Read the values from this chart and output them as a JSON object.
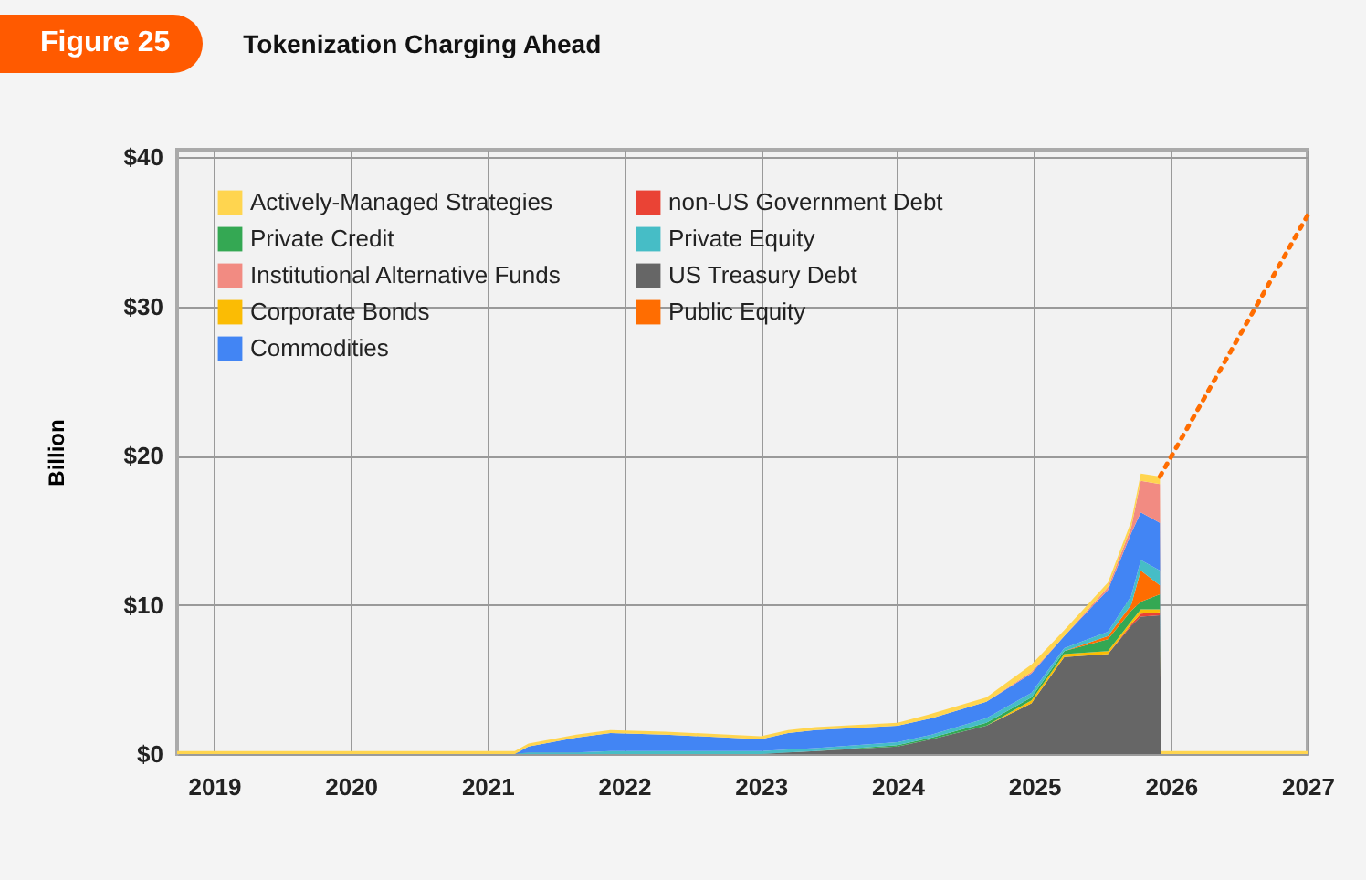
{
  "chart_data": {
    "type": "area",
    "stacked": true,
    "title": "Tokenization Charging Ahead",
    "annotations": [
      "Figure 25"
    ],
    "ylabel": "Billion",
    "x": [
      2018.73,
      2021.2,
      2021.3,
      2021.65,
      2021.9,
      2022.3,
      2023.0,
      2023.2,
      2023.4,
      2024.0,
      2024.25,
      2024.65,
      2024.98,
      2025.22,
      2025.54,
      2025.71,
      2025.78,
      2025.92,
      2025.93,
      2027
    ],
    "series": [
      {
        "name": "US Treasury Debt",
        "color": "#666666",
        "values": [
          0,
          0,
          0,
          0,
          0,
          0,
          0,
          0.1,
          0.2,
          0.5,
          1.0,
          1.9,
          3.4,
          6.5,
          6.7,
          8.6,
          9.2,
          9.3,
          0,
          0
        ]
      },
      {
        "name": "non-US Government Debt",
        "color": "#ea4335",
        "values": [
          0,
          0,
          0,
          0,
          0,
          0,
          0,
          0,
          0,
          0,
          0,
          0,
          0,
          0,
          0,
          0.1,
          0.2,
          0.2,
          0,
          0
        ]
      },
      {
        "name": "Corporate Bonds",
        "color": "#fbbc04",
        "values": [
          0,
          0,
          0,
          0,
          0,
          0,
          0,
          0,
          0,
          0,
          0,
          0,
          0.2,
          0.2,
          0.2,
          0.2,
          0.3,
          0.2,
          0,
          0
        ]
      },
      {
        "name": "Private Credit",
        "color": "#34a853",
        "values": [
          0,
          0,
          0,
          0,
          0,
          0,
          0,
          0,
          0,
          0.1,
          0.1,
          0.2,
          0.2,
          0.2,
          0.8,
          0.7,
          0.5,
          1.0,
          0,
          0
        ]
      },
      {
        "name": "Public Equity",
        "color": "#ff6d01",
        "values": [
          0,
          0,
          0,
          0,
          0,
          0,
          0,
          0,
          0,
          0,
          0,
          0,
          0,
          0,
          0.2,
          0.4,
          2.1,
          0.6,
          0,
          0
        ]
      },
      {
        "name": "Private Equity",
        "color": "#46bdc6",
        "values": [
          0,
          0,
          0.1,
          0.1,
          0.2,
          0.2,
          0.2,
          0.2,
          0.2,
          0.2,
          0.2,
          0.3,
          0.3,
          0.2,
          0.3,
          0.6,
          0.7,
          1.0,
          0,
          0
        ]
      },
      {
        "name": "Commodities",
        "color": "#4285f4",
        "values": [
          0,
          0,
          0.4,
          1.0,
          1.2,
          1.1,
          0.8,
          1.1,
          1.2,
          1.1,
          1.1,
          1.1,
          1.3,
          0.8,
          2.8,
          4.2,
          3.2,
          3.2,
          0,
          0
        ]
      },
      {
        "name": "Institutional Alternative Funds",
        "color": "#f28b82",
        "values": [
          0,
          0,
          0,
          0,
          0,
          0,
          0,
          0,
          0,
          0,
          0,
          0,
          0.1,
          0,
          0.2,
          0.4,
          2.1,
          2.6,
          0,
          0
        ]
      },
      {
        "name": "Actively-Managed Strategies",
        "color": "#ffd54f",
        "values": [
          0.2,
          0.2,
          0.2,
          0.2,
          0.2,
          0.2,
          0.2,
          0.2,
          0.2,
          0.2,
          0.3,
          0.3,
          0.5,
          0.4,
          0.3,
          0.4,
          0.5,
          0.5,
          0.2,
          0.2
        ]
      },
      {
        "type": "line",
        "color": "#ff6d01",
        "line_style": "dotted",
        "x": [
          2025.92,
          2027
        ],
        "values": [
          18.6,
          36.1
        ]
      }
    ],
    "xlim": [
      2018.73,
      2027
    ],
    "xticks": [
      2019,
      2020,
      2021,
      2022,
      2023,
      2024,
      2025,
      2026,
      2027
    ],
    "ylim": [
      0,
      40.5
    ],
    "yticks": [
      {
        "value": 40,
        "label": "$40"
      },
      {
        "value": 30,
        "label": "$30"
      },
      {
        "value": 20,
        "label": "$20"
      },
      {
        "value": 10,
        "label": "$10"
      },
      {
        "value": 0,
        "label": "$0"
      }
    ],
    "grid": true,
    "legend": "top left"
  }
}
